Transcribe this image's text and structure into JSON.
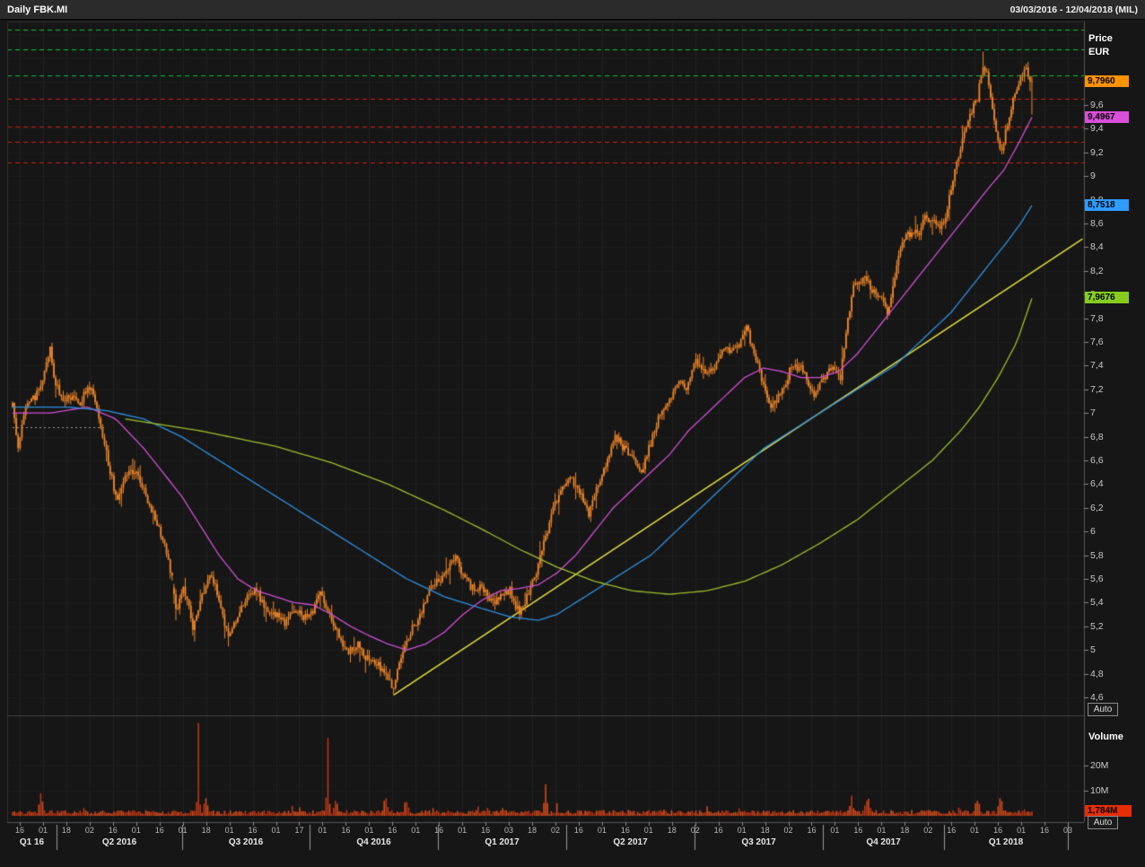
{
  "window": {
    "title": "Daily FBK.MI",
    "date_range": "03/03/2016 - 12/04/2018 (MIL)"
  },
  "price_panel": {
    "axis_title": [
      "Price",
      "EUR"
    ],
    "auto_label": "Auto",
    "ticks": [
      {
        "label": "9,6",
        "value": 9.6
      },
      {
        "label": "9,4",
        "value": 9.4
      },
      {
        "label": "9,2",
        "value": 9.2
      },
      {
        "label": "9",
        "value": 9.0
      },
      {
        "label": "8,8",
        "value": 8.8
      },
      {
        "label": "8,6",
        "value": 8.6
      },
      {
        "label": "8,4",
        "value": 8.4
      },
      {
        "label": "8,2",
        "value": 8.2
      },
      {
        "label": "8",
        "value": 8.0
      },
      {
        "label": "7,8",
        "value": 7.8
      },
      {
        "label": "7,6",
        "value": 7.6
      },
      {
        "label": "7,4",
        "value": 7.4
      },
      {
        "label": "7,2",
        "value": 7.2
      },
      {
        "label": "7",
        "value": 7.0
      },
      {
        "label": "6,8",
        "value": 6.8
      },
      {
        "label": "6,6",
        "value": 6.6
      },
      {
        "label": "6,4",
        "value": 6.4
      },
      {
        "label": "6,2",
        "value": 6.2
      },
      {
        "label": "6",
        "value": 6.0
      },
      {
        "label": "5,8",
        "value": 5.8
      },
      {
        "label": "5,6",
        "value": 5.6
      },
      {
        "label": "5,4",
        "value": 5.4
      },
      {
        "label": "5,2",
        "value": 5.2
      },
      {
        "label": "5",
        "value": 5.0
      },
      {
        "label": "4,8",
        "value": 4.8
      },
      {
        "label": "4,6",
        "value": 4.6
      }
    ],
    "badges": [
      {
        "name": "last-price",
        "label": "9,7960",
        "value": 9.796,
        "bg": "#ff9300",
        "fg": "#000000"
      },
      {
        "name": "ma-fast",
        "label": "9,4967",
        "value": 9.4967,
        "bg": "#d94fd9",
        "fg": "#000000"
      },
      {
        "name": "ma-mid",
        "label": "8,7518",
        "value": 8.7518,
        "bg": "#2f9bff",
        "fg": "#000000"
      },
      {
        "name": "ma-slow",
        "label": "7,9676",
        "value": 7.9676,
        "bg": "#86cc1f",
        "fg": "#000000"
      }
    ]
  },
  "volume_panel": {
    "title": "Volume",
    "auto_label": "Auto",
    "ticks": [
      {
        "label": "20M",
        "value": 20
      },
      {
        "label": "10M",
        "value": 10
      }
    ],
    "badge": {
      "label": "1,784M",
      "value": 1.784,
      "bg": "#e62e04",
      "fg": "#000000"
    }
  },
  "x_axis": {
    "minor_ticks": [
      "16",
      "01",
      "18",
      "02",
      "16",
      "01",
      "16",
      "01",
      "18",
      "01",
      "16",
      "01",
      "17",
      "01",
      "16",
      "01",
      "16",
      "01",
      "16",
      "01",
      "16",
      "03",
      "18",
      "02",
      "16",
      "01",
      "16",
      "01",
      "18",
      "02",
      "16",
      "01",
      "18",
      "02",
      "16",
      "01",
      "16",
      "01",
      "18",
      "02",
      "16",
      "01",
      "16",
      "01",
      "16",
      "03"
    ],
    "quarters": [
      "Q1 16",
      "Q2 2016",
      "Q3 2016",
      "Q4 2016",
      "Q1 2017",
      "Q2 2017",
      "Q3 2017",
      "Q4 2017",
      "Q1 2018"
    ]
  },
  "chart_data": {
    "type": "candlestick",
    "title": "Daily FBK.MI",
    "symbol": "FBK.MI",
    "interval": "Daily",
    "date_range": "03/03/2016 - 12/04/2018",
    "exchange": "MIL",
    "price_unit": "EUR",
    "ylim": [
      4.45,
      10.3
    ],
    "y_ticks_step": 0.2,
    "trading_days": 544,
    "last_close": 9.796,
    "last_volume_millions": 1.784,
    "close_path": [
      [
        0,
        7.05
      ],
      [
        3,
        6.72
      ],
      [
        6,
        7.0
      ],
      [
        10,
        7.1
      ],
      [
        15,
        7.2
      ],
      [
        20,
        7.55
      ],
      [
        22,
        7.3
      ],
      [
        27,
        7.1
      ],
      [
        32,
        7.15
      ],
      [
        36,
        7.05
      ],
      [
        40,
        7.25
      ],
      [
        43,
        7.15
      ],
      [
        47,
        6.9
      ],
      [
        52,
        6.5
      ],
      [
        56,
        6.25
      ],
      [
        61,
        6.5
      ],
      [
        66,
        6.5
      ],
      [
        71,
        6.3
      ],
      [
        76,
        6.1
      ],
      [
        80,
        5.95
      ],
      [
        85,
        5.6
      ],
      [
        87,
        5.32
      ],
      [
        91,
        5.55
      ],
      [
        96,
        5.2
      ],
      [
        101,
        5.45
      ],
      [
        106,
        5.65
      ],
      [
        110,
        5.4
      ],
      [
        115,
        5.1
      ],
      [
        120,
        5.3
      ],
      [
        126,
        5.5
      ],
      [
        130,
        5.5
      ],
      [
        135,
        5.35
      ],
      [
        140,
        5.3
      ],
      [
        145,
        5.22
      ],
      [
        150,
        5.35
      ],
      [
        154,
        5.28
      ],
      [
        159,
        5.3
      ],
      [
        164,
        5.5
      ],
      [
        169,
        5.3
      ],
      [
        174,
        5.1
      ],
      [
        179,
        4.98
      ],
      [
        184,
        5.05
      ],
      [
        188,
        4.95
      ],
      [
        193,
        4.9
      ],
      [
        198,
        4.82
      ],
      [
        203,
        4.66
      ],
      [
        207,
        4.95
      ],
      [
        212,
        5.15
      ],
      [
        217,
        5.3
      ],
      [
        222,
        5.5
      ],
      [
        228,
        5.6
      ],
      [
        232,
        5.7
      ],
      [
        236,
        5.78
      ],
      [
        241,
        5.6
      ],
      [
        246,
        5.5
      ],
      [
        250,
        5.55
      ],
      [
        255,
        5.4
      ],
      [
        260,
        5.45
      ],
      [
        265,
        5.5
      ],
      [
        270,
        5.3
      ],
      [
        274,
        5.45
      ],
      [
        279,
        5.65
      ],
      [
        284,
        5.95
      ],
      [
        289,
        6.25
      ],
      [
        293,
        6.35
      ],
      [
        298,
        6.45
      ],
      [
        303,
        6.3
      ],
      [
        307,
        6.15
      ],
      [
        312,
        6.4
      ],
      [
        316,
        6.55
      ],
      [
        321,
        6.8
      ],
      [
        326,
        6.7
      ],
      [
        331,
        6.6
      ],
      [
        335,
        6.5
      ],
      [
        340,
        6.75
      ],
      [
        345,
        7.0
      ],
      [
        350,
        7.1
      ],
      [
        355,
        7.3
      ],
      [
        359,
        7.2
      ],
      [
        364,
        7.45
      ],
      [
        369,
        7.35
      ],
      [
        374,
        7.4
      ],
      [
        378,
        7.5
      ],
      [
        383,
        7.55
      ],
      [
        388,
        7.6
      ],
      [
        391,
        7.72
      ],
      [
        396,
        7.45
      ],
      [
        401,
        7.2
      ],
      [
        404,
        7.05
      ],
      [
        409,
        7.15
      ],
      [
        414,
        7.35
      ],
      [
        419,
        7.4
      ],
      [
        423,
        7.3
      ],
      [
        427,
        7.15
      ],
      [
        432,
        7.3
      ],
      [
        437,
        7.4
      ],
      [
        441,
        7.3
      ],
      [
        444,
        7.7
      ],
      [
        448,
        8.05
      ],
      [
        453,
        8.15
      ],
      [
        458,
        8.05
      ],
      [
        463,
        7.95
      ],
      [
        466,
        7.85
      ],
      [
        469,
        8.05
      ],
      [
        473,
        8.4
      ],
      [
        477,
        8.5
      ],
      [
        480,
        8.55
      ],
      [
        483,
        8.5
      ],
      [
        486,
        8.7
      ],
      [
        489,
        8.6
      ],
      [
        491,
        8.65
      ],
      [
        494,
        8.55
      ],
      [
        497,
        8.65
      ],
      [
        500,
        8.9
      ],
      [
        503,
        9.1
      ],
      [
        506,
        9.3
      ],
      [
        509,
        9.45
      ],
      [
        511,
        9.55
      ],
      [
        514,
        9.65
      ],
      [
        517,
        9.95
      ],
      [
        520,
        9.8
      ],
      [
        523,
        9.5
      ],
      [
        526,
        9.2
      ],
      [
        528,
        9.3
      ],
      [
        531,
        9.5
      ],
      [
        534,
        9.7
      ],
      [
        537,
        9.85
      ],
      [
        540,
        9.9
      ],
      [
        543,
        9.796
      ]
    ],
    "moving_averages": [
      {
        "name": "ma-fast",
        "color": "#cf4fd4",
        "last_value": 9.4967,
        "points": [
          [
            0,
            7.0
          ],
          [
            20,
            7.0
          ],
          [
            40,
            7.05
          ],
          [
            55,
            6.95
          ],
          [
            70,
            6.7
          ],
          [
            80,
            6.5
          ],
          [
            90,
            6.3
          ],
          [
            100,
            6.05
          ],
          [
            110,
            5.8
          ],
          [
            120,
            5.6
          ],
          [
            130,
            5.5
          ],
          [
            140,
            5.45
          ],
          [
            150,
            5.4
          ],
          [
            160,
            5.38
          ],
          [
            170,
            5.3
          ],
          [
            180,
            5.2
          ],
          [
            190,
            5.12
          ],
          [
            200,
            5.05
          ],
          [
            210,
            5.0
          ],
          [
            220,
            5.05
          ],
          [
            230,
            5.15
          ],
          [
            240,
            5.3
          ],
          [
            250,
            5.42
          ],
          [
            260,
            5.5
          ],
          [
            270,
            5.52
          ],
          [
            280,
            5.55
          ],
          [
            290,
            5.65
          ],
          [
            300,
            5.8
          ],
          [
            310,
            6.0
          ],
          [
            320,
            6.2
          ],
          [
            330,
            6.35
          ],
          [
            340,
            6.5
          ],
          [
            350,
            6.65
          ],
          [
            360,
            6.85
          ],
          [
            370,
            7.0
          ],
          [
            380,
            7.15
          ],
          [
            390,
            7.3
          ],
          [
            400,
            7.38
          ],
          [
            410,
            7.35
          ],
          [
            420,
            7.3
          ],
          [
            430,
            7.3
          ],
          [
            440,
            7.35
          ],
          [
            450,
            7.5
          ],
          [
            460,
            7.7
          ],
          [
            470,
            7.9
          ],
          [
            480,
            8.1
          ],
          [
            490,
            8.3
          ],
          [
            500,
            8.5
          ],
          [
            510,
            8.7
          ],
          [
            520,
            8.9
          ],
          [
            528,
            9.05
          ],
          [
            535,
            9.25
          ],
          [
            543,
            9.4967
          ]
        ]
      },
      {
        "name": "ma-mid",
        "color": "#2f8fe0",
        "last_value": 8.7518,
        "points": [
          [
            0,
            7.05
          ],
          [
            30,
            7.05
          ],
          [
            50,
            7.02
          ],
          [
            70,
            6.95
          ],
          [
            90,
            6.8
          ],
          [
            110,
            6.6
          ],
          [
            130,
            6.4
          ],
          [
            150,
            6.2
          ],
          [
            170,
            6.0
          ],
          [
            190,
            5.8
          ],
          [
            210,
            5.6
          ],
          [
            230,
            5.45
          ],
          [
            250,
            5.35
          ],
          [
            265,
            5.28
          ],
          [
            280,
            5.25
          ],
          [
            290,
            5.3
          ],
          [
            300,
            5.4
          ],
          [
            310,
            5.5
          ],
          [
            320,
            5.6
          ],
          [
            330,
            5.7
          ],
          [
            340,
            5.8
          ],
          [
            350,
            5.95
          ],
          [
            360,
            6.1
          ],
          [
            370,
            6.25
          ],
          [
            380,
            6.4
          ],
          [
            390,
            6.55
          ],
          [
            400,
            6.7
          ],
          [
            410,
            6.8
          ],
          [
            420,
            6.9
          ],
          [
            430,
            7.0
          ],
          [
            440,
            7.1
          ],
          [
            450,
            7.2
          ],
          [
            460,
            7.3
          ],
          [
            470,
            7.4
          ],
          [
            480,
            7.55
          ],
          [
            490,
            7.7
          ],
          [
            500,
            7.85
          ],
          [
            510,
            8.05
          ],
          [
            520,
            8.25
          ],
          [
            530,
            8.45
          ],
          [
            537,
            8.6
          ],
          [
            543,
            8.7518
          ]
        ]
      },
      {
        "name": "ma-slow",
        "color": "#9dbd2a",
        "last_value": 7.9676,
        "points": [
          [
            60,
            6.95
          ],
          [
            100,
            6.85
          ],
          [
            140,
            6.72
          ],
          [
            170,
            6.58
          ],
          [
            200,
            6.4
          ],
          [
            230,
            6.18
          ],
          [
            250,
            6.02
          ],
          [
            270,
            5.85
          ],
          [
            290,
            5.7
          ],
          [
            310,
            5.58
          ],
          [
            330,
            5.5
          ],
          [
            350,
            5.47
          ],
          [
            370,
            5.5
          ],
          [
            390,
            5.58
          ],
          [
            410,
            5.72
          ],
          [
            430,
            5.9
          ],
          [
            450,
            6.1
          ],
          [
            470,
            6.35
          ],
          [
            490,
            6.6
          ],
          [
            505,
            6.85
          ],
          [
            515,
            7.05
          ],
          [
            525,
            7.3
          ],
          [
            535,
            7.6
          ],
          [
            543,
            7.9676
          ]
        ]
      }
    ],
    "trendline": {
      "color": "#e8e23c",
      "from": [
        203,
        4.62
      ],
      "to": [
        570,
        8.47
      ]
    },
    "resistance_levels_green": [
      10.235,
      10.07,
      9.85
    ],
    "support_levels_red": [
      9.653,
      9.418,
      9.29,
      9.115
    ],
    "support_segment": {
      "price": 6.88,
      "from_day": 0,
      "to_day": 50,
      "color": "#9a9a9a"
    },
    "volume_spikes_millions": [
      [
        15,
        9
      ],
      [
        99,
        37
      ],
      [
        103,
        7
      ],
      [
        168,
        31
      ],
      [
        172,
        6
      ],
      [
        199,
        7
      ],
      [
        210,
        5.5
      ],
      [
        284,
        12.5
      ],
      [
        290,
        5
      ],
      [
        447,
        8
      ],
      [
        455,
        6
      ],
      [
        514,
        6
      ],
      [
        526,
        7
      ],
      [
        543,
        1.784
      ]
    ],
    "key_bars": [
      {
        "day": 203,
        "low": 4.62
      },
      {
        "day": 87,
        "low": 5.25
      },
      {
        "day": 517,
        "high": 10.05
      },
      {
        "day": 543,
        "close": 9.796,
        "low": 9.52
      }
    ],
    "candle_color": "#ef8629",
    "volume_colors": [
      "#d14c1d",
      "#bd3513"
    ],
    "seed": 42
  }
}
